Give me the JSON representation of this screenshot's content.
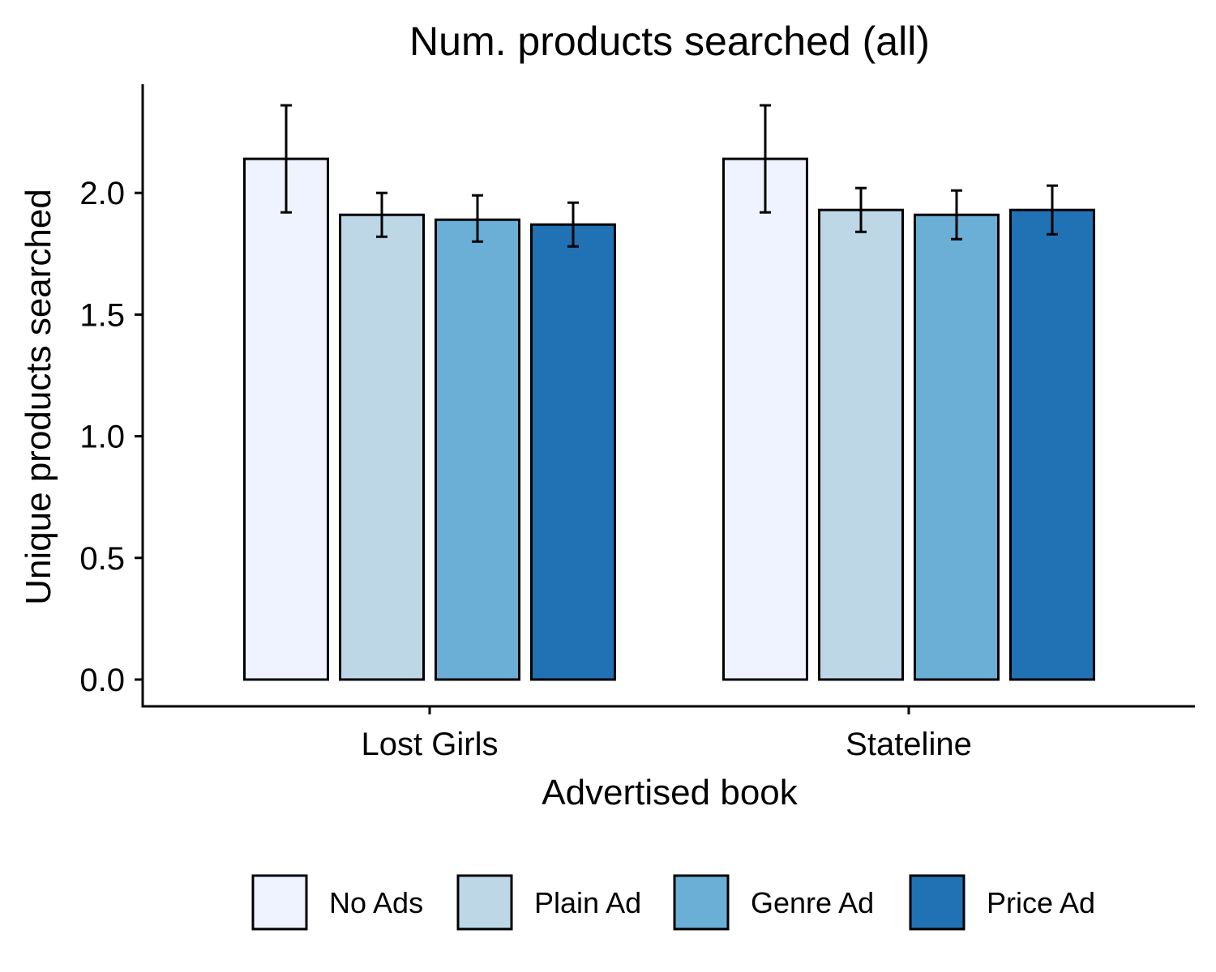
{
  "chart_data": {
    "type": "bar",
    "title": "Num. products searched (all)",
    "xlabel": "Advertised book",
    "ylabel": "Unique products searched",
    "categories": [
      "Lost Girls",
      "Stateline"
    ],
    "ylim": [
      -0.11,
      2.46
    ],
    "yticks": [
      0.0,
      0.5,
      1.0,
      1.5,
      2.0
    ],
    "ytick_labels": [
      "0.0",
      "0.5",
      "1.0",
      "1.5",
      "2.0"
    ],
    "grid": false,
    "legend_position": "bottom",
    "error_bars": true,
    "series": [
      {
        "name": "No Ads",
        "color": "#EFF3FF",
        "values": [
          2.14,
          2.14
        ],
        "error_low": [
          1.92,
          1.92
        ],
        "error_high": [
          2.36,
          2.36
        ]
      },
      {
        "name": "Plain Ad",
        "color": "#BDD7E7",
        "values": [
          1.91,
          1.93
        ],
        "error_low": [
          1.82,
          1.84
        ],
        "error_high": [
          2.0,
          2.02
        ]
      },
      {
        "name": "Genre Ad",
        "color": "#6BAED6",
        "values": [
          1.89,
          1.91
        ],
        "error_low": [
          1.8,
          1.81
        ],
        "error_high": [
          1.99,
          2.01
        ]
      },
      {
        "name": "Price Ad",
        "color": "#2171B5",
        "values": [
          1.87,
          1.93
        ],
        "error_low": [
          1.78,
          1.83
        ],
        "error_high": [
          1.96,
          2.03
        ]
      }
    ]
  }
}
